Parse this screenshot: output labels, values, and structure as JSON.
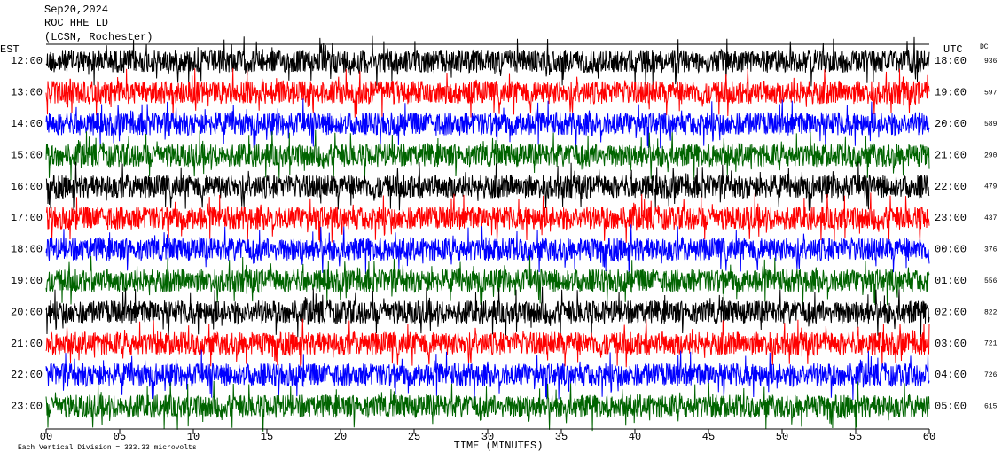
{
  "chart_data": {
    "type": "helicorder",
    "title_lines": [
      "Sep20,2024",
      "ROC HHE LD",
      "(LCSN, Rochester)"
    ],
    "left_axis_label": "EST",
    "right_axis_label": "UTC",
    "dc_label": "DC",
    "x_label": "TIME (MINUTES)",
    "footer": "Each Vertical Division =  333.33 microvolts",
    "xlim": [
      0,
      60
    ],
    "xticks": [
      {
        "value": 0,
        "label": "00"
      },
      {
        "value": 5,
        "label": "05"
      },
      10,
      15,
      20,
      25,
      30,
      35,
      40,
      45,
      50,
      55,
      60
    ],
    "rows": [
      {
        "est": "12:00",
        "utc": "18:00",
        "dc": "936",
        "color": "#000000"
      },
      {
        "est": "13:00",
        "utc": "19:00",
        "dc": "597",
        "color": "#ff0000"
      },
      {
        "est": "14:00",
        "utc": "20:00",
        "dc": "589",
        "color": "#0000ff"
      },
      {
        "est": "15:00",
        "utc": "21:00",
        "dc": "290",
        "color": "#006400"
      },
      {
        "est": "16:00",
        "utc": "22:00",
        "dc": "479",
        "color": "#000000"
      },
      {
        "est": "17:00",
        "utc": "23:00",
        "dc": "437",
        "color": "#ff0000"
      },
      {
        "est": "18:00",
        "utc": "00:00",
        "dc": "376",
        "color": "#0000ff"
      },
      {
        "est": "19:00",
        "utc": "01:00",
        "dc": "556",
        "color": "#006400"
      },
      {
        "est": "20:00",
        "utc": "02:00",
        "dc": "822",
        "color": "#000000"
      },
      {
        "est": "21:00",
        "utc": "03:00",
        "dc": "721",
        "color": "#ff0000"
      },
      {
        "est": "22:00",
        "utc": "04:00",
        "dc": "726",
        "color": "#0000ff"
      },
      {
        "est": "23:00",
        "utc": "05:00",
        "dc": "615",
        "color": "#006400"
      }
    ]
  }
}
